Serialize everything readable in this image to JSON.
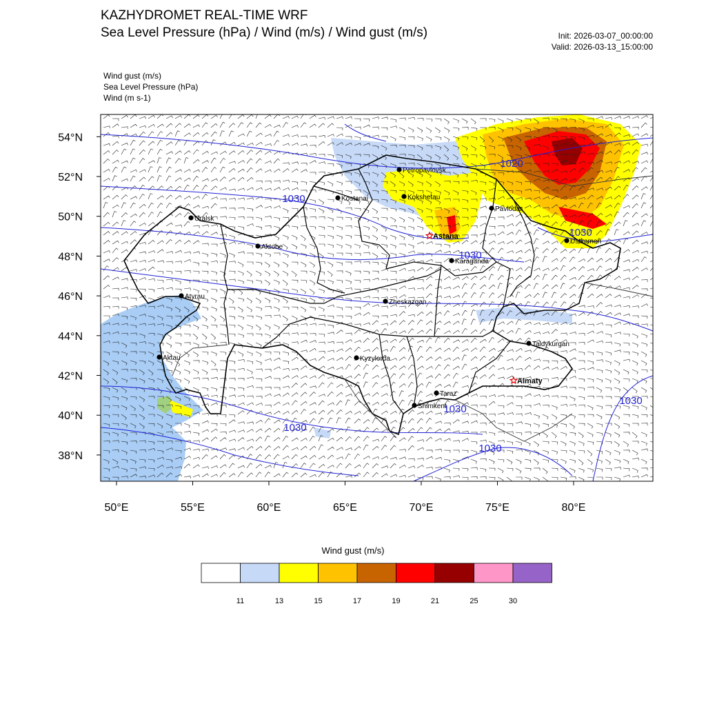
{
  "header": {
    "title1": "KAZHYDROMET REAL-TIME WRF",
    "title2": "Sea Level Pressure  (hPa) / Wind  (m/s) / Wind gust  (m/s)",
    "init": "Init: 2026-03-07_00:00:00",
    "valid": "Valid: 2026-03-13_15:00:00"
  },
  "fields_legend": [
    "Wind gust   (m/s)",
    "Sea Level Pressure   (hPa)",
    "Wind   (m s-1)"
  ],
  "axes": {
    "lat_labels": [
      "54°N",
      "52°N",
      "50°N",
      "48°N",
      "46°N",
      "44°N",
      "42°N",
      "40°N",
      "38°N"
    ],
    "lon_labels": [
      "50°E",
      "55°E",
      "60°E",
      "65°E",
      "70°E",
      "75°E",
      "80°E"
    ]
  },
  "cities": [
    {
      "name": "Petropavlovsk",
      "capital": false
    },
    {
      "name": "Kostanai",
      "capital": false
    },
    {
      "name": "Kokshetau",
      "capital": false
    },
    {
      "name": "Pavlodar",
      "capital": false
    },
    {
      "name": "Uralsk",
      "capital": false
    },
    {
      "name": "Aktobe",
      "capital": false
    },
    {
      "name": "Astana",
      "capital": true
    },
    {
      "name": "Ustkamen",
      "capital": false
    },
    {
      "name": "Karaganda",
      "capital": false
    },
    {
      "name": "Atyrau",
      "capital": false
    },
    {
      "name": "Zheskazgan",
      "capital": false
    },
    {
      "name": "Aktau",
      "capital": false
    },
    {
      "name": "Kyzylorda",
      "capital": false
    },
    {
      "name": "Taldykurgan",
      "capital": false
    },
    {
      "name": "Almaty",
      "capital": true
    },
    {
      "name": "Taraz",
      "capital": false
    },
    {
      "name": "Shimkent",
      "capital": false
    }
  ],
  "isobar_labels": [
    "1020",
    "1030",
    "1030",
    "1030",
    "1030",
    "1030",
    "1030",
    "1030"
  ],
  "colorbar": {
    "title": "Wind gust (m/s)",
    "colors": [
      "#ffffff",
      "#c6d9f7",
      "#ffff00",
      "#ffc200",
      "#c86400",
      "#ff0000",
      "#960000",
      "#ff96c8",
      "#9664c8"
    ],
    "labels": [
      "11",
      "13",
      "15",
      "17",
      "19",
      "21",
      "25",
      "30"
    ]
  }
}
